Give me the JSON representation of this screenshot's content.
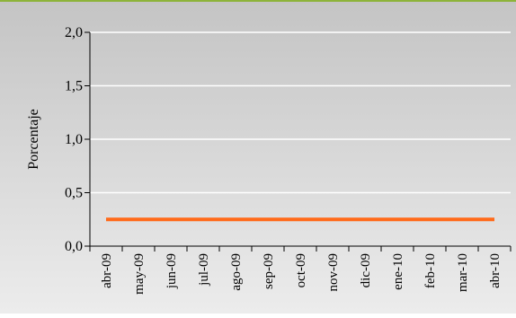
{
  "chart_data": {
    "type": "line",
    "title": "",
    "xlabel": "",
    "ylabel": "Porcentaje",
    "ylim": [
      0,
      2
    ],
    "yticks": [
      "0,0",
      "0,5",
      "1,0",
      "1,5",
      "2,0"
    ],
    "ytick_values": [
      0,
      0.5,
      1,
      1.5,
      2
    ],
    "categories": [
      "abr-09",
      "may-09",
      "jun-09",
      "jul-09",
      "ago-09",
      "sep-09",
      "oct-09",
      "nov-09",
      "dic-09",
      "ene-10",
      "feb-10",
      "mar-10",
      "abr-10"
    ],
    "series": [
      {
        "values": [
          0.25,
          0.25,
          0.25,
          0.25,
          0.25,
          0.25,
          0.25,
          0.25,
          0.25,
          0.25,
          0.25,
          0.25,
          0.25
        ],
        "color": "#FF6A1A"
      }
    ],
    "grid": true,
    "legend": "none",
    "colors": {
      "plot_area": "#C8C8C8",
      "gridline": "#FFFFFF",
      "frame_top": "#8DB33A"
    }
  }
}
